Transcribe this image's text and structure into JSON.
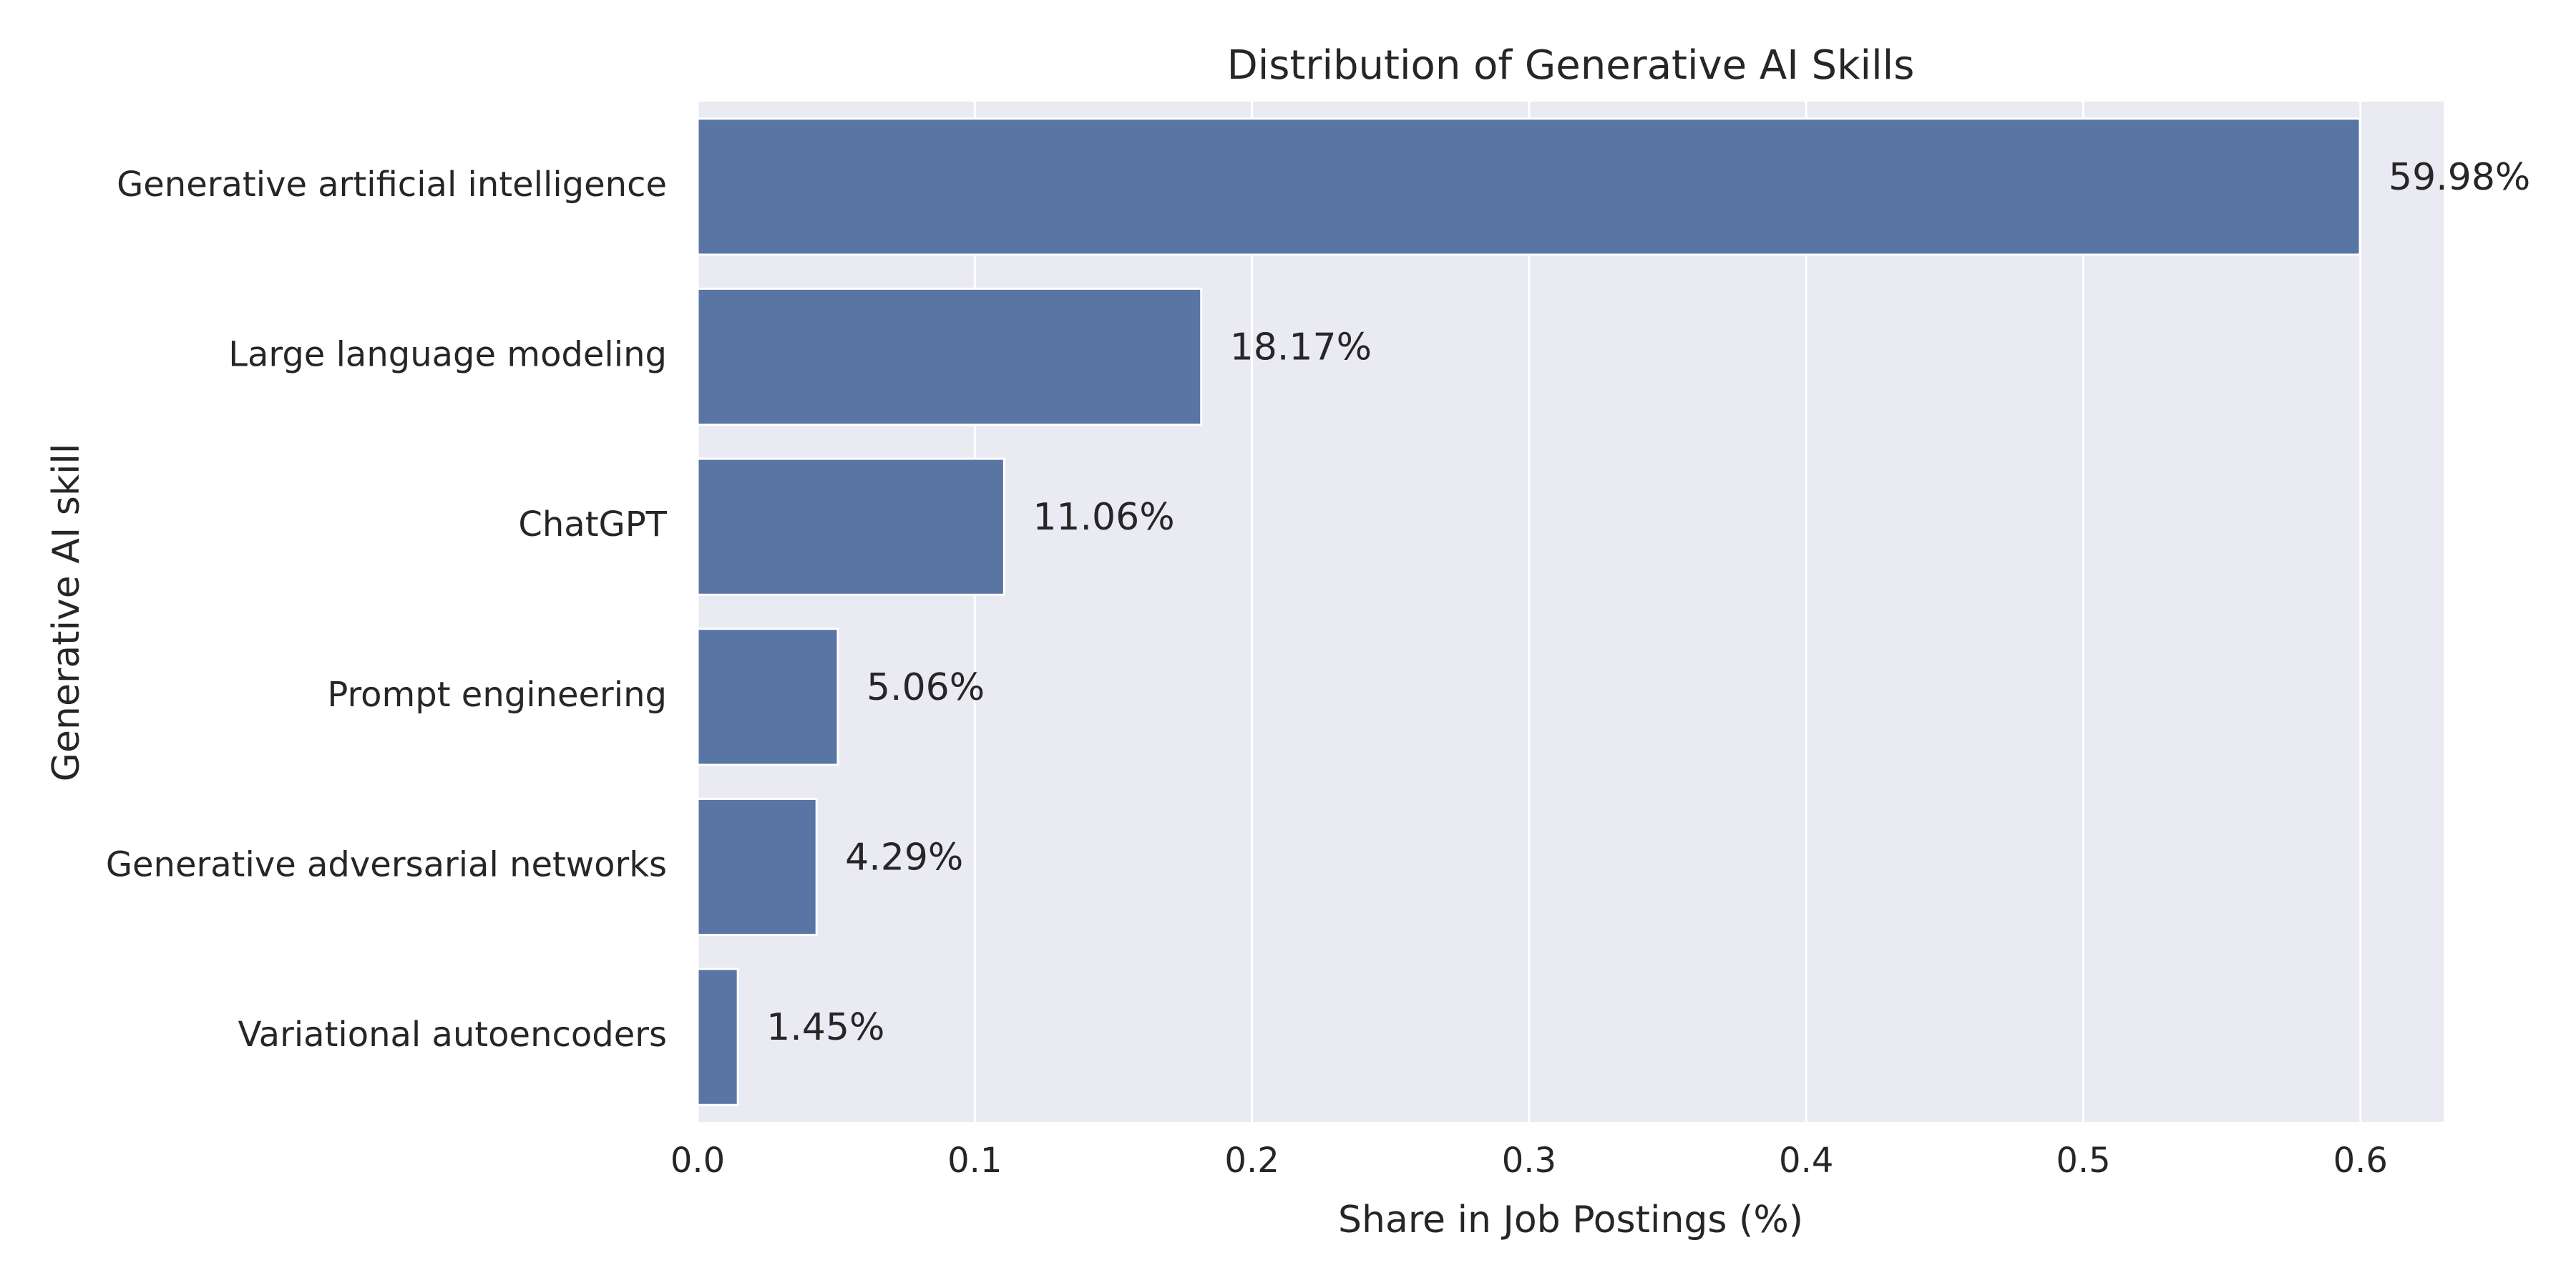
{
  "chart_data": {
    "type": "bar",
    "orientation": "horizontal",
    "title": "Distribution of Generative AI Skills",
    "xlabel": "Share in Job Postings (%)",
    "ylabel": "Generative AI skill",
    "categories": [
      "Generative artificial intelligence",
      "Large language modeling",
      "ChatGPT",
      "Prompt engineering",
      "Generative adversarial networks",
      "Variational autoencoders"
    ],
    "values": [
      0.5998,
      0.1817,
      0.1106,
      0.0506,
      0.0429,
      0.0145
    ],
    "data_labels": [
      "59.98%",
      "18.17%",
      "11.06%",
      "5.06%",
      "4.29%",
      "1.45%"
    ],
    "xlim": [
      0.0,
      0.63
    ],
    "xticks": [
      0.0,
      0.1,
      0.2,
      0.3,
      0.4,
      0.5,
      0.6
    ],
    "xtick_labels": [
      "0.0",
      "0.1",
      "0.2",
      "0.3",
      "0.4",
      "0.5",
      "0.6"
    ],
    "grid": true,
    "colors": {
      "bar": "#5975a4",
      "plot_background": "#eaeaf2",
      "grid": "#ffffff",
      "text": "#262626"
    }
  }
}
